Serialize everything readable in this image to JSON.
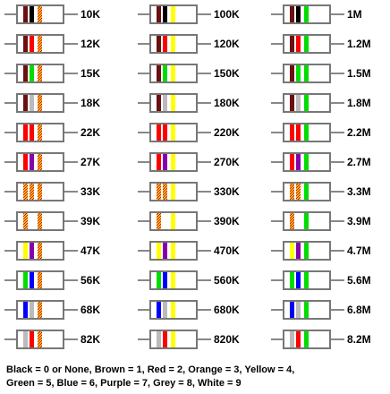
{
  "colors": {
    "Black": "#000000",
    "Brown": "#6b1010",
    "Red": "#ff0000",
    "Orange": "#f0a020",
    "Yellow": "#ffff00",
    "Green": "#00dd00",
    "Blue": "#0000ff",
    "Purple": "#8800aa",
    "Grey": "#bbbbbb",
    "White": "#ffffff",
    "body": "#ffffff",
    "outline": "#777777",
    "lead": "#888888"
  },
  "columns": [
    {
      "name": "kilo-ohm-tens",
      "resistors": [
        {
          "label": "10K",
          "bands": [
            "Brown",
            "Black",
            "Orange"
          ]
        },
        {
          "label": "12K",
          "bands": [
            "Brown",
            "Red",
            "Orange"
          ]
        },
        {
          "label": "15K",
          "bands": [
            "Brown",
            "Green",
            "Orange"
          ]
        },
        {
          "label": "18K",
          "bands": [
            "Brown",
            "Grey",
            "Orange"
          ]
        },
        {
          "label": "22K",
          "bands": [
            "Red",
            "Red",
            "Orange"
          ]
        },
        {
          "label": "27K",
          "bands": [
            "Red",
            "Purple",
            "Orange"
          ]
        },
        {
          "label": "33K",
          "bands": [
            "Orange",
            "Orange",
            "Orange"
          ]
        },
        {
          "label": "39K",
          "bands": [
            "Orange",
            "White",
            "Orange"
          ]
        },
        {
          "label": "47K",
          "bands": [
            "Yellow",
            "Purple",
            "Orange"
          ]
        },
        {
          "label": "56K",
          "bands": [
            "Green",
            "Blue",
            "Orange"
          ]
        },
        {
          "label": "68K",
          "bands": [
            "Blue",
            "Grey",
            "Orange"
          ]
        },
        {
          "label": "82K",
          "bands": [
            "Grey",
            "Red",
            "Orange"
          ]
        }
      ]
    },
    {
      "name": "kilo-ohm-hundreds",
      "resistors": [
        {
          "label": "100K",
          "bands": [
            "Brown",
            "Black",
            "Yellow"
          ]
        },
        {
          "label": "120K",
          "bands": [
            "Brown",
            "Red",
            "Yellow"
          ]
        },
        {
          "label": "150K",
          "bands": [
            "Brown",
            "Green",
            "Yellow"
          ]
        },
        {
          "label": "180K",
          "bands": [
            "Brown",
            "Grey",
            "Yellow"
          ]
        },
        {
          "label": "220K",
          "bands": [
            "Red",
            "Red",
            "Yellow"
          ]
        },
        {
          "label": "270K",
          "bands": [
            "Red",
            "Purple",
            "Yellow"
          ]
        },
        {
          "label": "330K",
          "bands": [
            "Orange",
            "Orange",
            "Yellow"
          ]
        },
        {
          "label": "390K",
          "bands": [
            "Orange",
            "White",
            "Yellow"
          ]
        },
        {
          "label": "470K",
          "bands": [
            "Yellow",
            "Purple",
            "Yellow"
          ]
        },
        {
          "label": "560K",
          "bands": [
            "Green",
            "Blue",
            "Yellow"
          ]
        },
        {
          "label": "680K",
          "bands": [
            "Blue",
            "Grey",
            "Yellow"
          ]
        },
        {
          "label": "820K",
          "bands": [
            "Grey",
            "Red",
            "Yellow"
          ]
        }
      ]
    },
    {
      "name": "mega-ohm",
      "resistors": [
        {
          "label": "1M",
          "bands": [
            "Brown",
            "Black",
            "Green"
          ]
        },
        {
          "label": "1.2M",
          "bands": [
            "Brown",
            "Red",
            "Green"
          ]
        },
        {
          "label": "1.5M",
          "bands": [
            "Brown",
            "Green",
            "Green"
          ]
        },
        {
          "label": "1.8M",
          "bands": [
            "Brown",
            "Grey",
            "Green"
          ]
        },
        {
          "label": "2.2M",
          "bands": [
            "Red",
            "Red",
            "Green"
          ]
        },
        {
          "label": "2.7M",
          "bands": [
            "Red",
            "Purple",
            "Green"
          ]
        },
        {
          "label": "3.3M",
          "bands": [
            "Orange",
            "Orange",
            "Green"
          ]
        },
        {
          "label": "3.9M",
          "bands": [
            "Orange",
            "White",
            "Green"
          ]
        },
        {
          "label": "4.7M",
          "bands": [
            "Yellow",
            "Purple",
            "Green"
          ]
        },
        {
          "label": "5.6M",
          "bands": [
            "Green",
            "Blue",
            "Green"
          ]
        },
        {
          "label": "6.8M",
          "bands": [
            "Blue",
            "Grey",
            "Green"
          ]
        },
        {
          "label": "8.2M",
          "bands": [
            "Grey",
            "Red",
            "Green"
          ]
        }
      ]
    }
  ],
  "legend": {
    "line1": "Black = 0 or None,  Brown = 1,  Red = 2,  Orange = 3,  Yellow = 4,",
    "line2": "Green = 5,  Blue = 6,  Purple = 7,  Grey = 8,  White = 9"
  }
}
